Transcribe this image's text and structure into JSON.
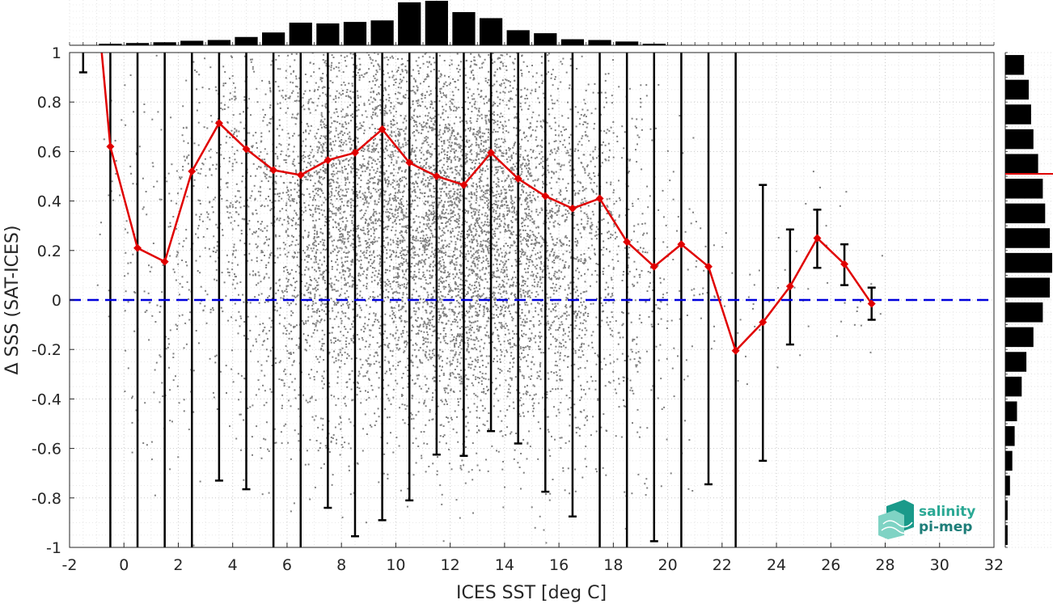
{
  "chart_data": {
    "type": "line",
    "title": "",
    "xlabel": "ICES SST [deg C]",
    "ylabel": "Δ SSS (SAT-ICES)",
    "xlim": [
      -2,
      32
    ],
    "ylim": [
      -1,
      1
    ],
    "xticks": [
      "-2",
      "0",
      "2",
      "4",
      "6",
      "8",
      "10",
      "12",
      "14",
      "16",
      "18",
      "20",
      "22",
      "24",
      "26",
      "28",
      "30",
      "32"
    ],
    "yticks": [
      "-1",
      "-0.8",
      "-0.6",
      "-0.4",
      "-0.2",
      "0",
      "0.2",
      "0.4",
      "0.6",
      "0.8",
      "1"
    ],
    "grid": true,
    "zero_line": {
      "y": 0,
      "color": "#0000dd",
      "style": "dashed"
    },
    "mean_line_color": "#e00000",
    "errorbar_color": "#000000",
    "scatter_color": "#808080",
    "series": [
      {
        "x": [
          -0.5,
          0.5,
          1.5,
          2.5,
          3.5,
          4.5,
          5.5,
          6.5,
          7.5,
          8.5,
          9.5,
          10.5,
          11.5,
          12.5,
          13.5,
          14.5,
          15.5,
          16.5,
          17.5,
          18.5,
          19.5,
          20.5,
          21.5,
          22.5,
          23.5,
          24.5,
          25.5,
          26.5,
          27.5
        ],
        "values": [
          0.62,
          0.21,
          0.155,
          0.52,
          0.715,
          0.61,
          0.525,
          0.505,
          0.565,
          0.595,
          0.69,
          0.555,
          0.5,
          0.465,
          0.595,
          0.49,
          0.42,
          0.37,
          0.41,
          0.235,
          0.135,
          0.225,
          0.135,
          -0.205,
          -0.09,
          0.055,
          0.25,
          0.145,
          -0.015
        ]
      }
    ],
    "error_bars": {
      "x": [
        -1.5,
        -0.5,
        0.5,
        1.5,
        2.5,
        3.5,
        4.5,
        5.5,
        6.5,
        7.5,
        8.5,
        9.5,
        10.5,
        11.5,
        12.5,
        13.5,
        14.5,
        15.5,
        16.5,
        17.5,
        18.5,
        19.5,
        20.5,
        21.5,
        22.5,
        23.5,
        24.5,
        25.5,
        26.5,
        27.5
      ],
      "low": [
        0.92,
        -1.1,
        -1.1,
        -1.1,
        -1.1,
        -0.73,
        -0.765,
        -1.1,
        -1.1,
        -0.84,
        -0.955,
        -0.89,
        -0.81,
        -0.625,
        -0.63,
        -0.53,
        -0.58,
        -0.775,
        -0.875,
        -1.1,
        -1.1,
        -0.975,
        -1.1,
        -0.745,
        -1.1,
        -0.65,
        -0.18,
        0.13,
        0.06,
        -0.08
      ],
      "high": [
        1.1,
        1.1,
        1.1,
        1.1,
        1.1,
        1.1,
        1.1,
        1.1,
        1.1,
        1.1,
        1.1,
        1.1,
        1.1,
        1.1,
        1.1,
        1.1,
        1.1,
        1.1,
        1.1,
        1.1,
        1.1,
        1.1,
        1.1,
        1.1,
        1.0,
        0.465,
        0.285,
        0.365,
        0.225,
        0.05
      ]
    },
    "top_histogram": {
      "x": [
        -1.5,
        -0.5,
        0.5,
        1.5,
        2.5,
        3.5,
        4.5,
        5.5,
        6.5,
        7.5,
        8.5,
        9.5,
        10.5,
        11.5,
        12.5,
        13.5,
        14.5,
        15.5,
        16.5,
        17.5,
        18.5,
        19.5,
        20.5
      ],
      "counts": [
        0.3,
        2,
        3,
        4,
        6,
        7,
        11,
        17,
        30,
        29,
        31,
        33,
        57,
        59,
        44,
        36,
        20,
        16,
        8,
        7,
        5,
        2,
        0.5
      ]
    },
    "right_histogram": {
      "y": [
        0.95,
        0.85,
        0.75,
        0.65,
        0.55,
        0.45,
        0.35,
        0.25,
        0.15,
        0.05,
        -0.05,
        -0.15,
        -0.25,
        -0.35,
        -0.45,
        -0.55,
        -0.65,
        -0.75,
        -0.85,
        -0.95
      ],
      "counts": [
        8,
        10,
        11,
        12,
        14,
        16,
        17,
        19,
        20,
        19,
        16,
        12,
        9,
        7,
        5,
        4,
        3,
        2,
        1,
        1
      ]
    },
    "right_histogram_mean": 0.51,
    "scatter_envelope": {
      "x": [
        -0.5,
        0.5,
        1.5,
        2.5,
        3.5,
        4.5,
        5.5,
        6.5,
        7.5,
        8.5,
        9.5,
        10.5,
        11.5,
        12.5,
        13.5,
        14.5,
        15.5,
        16.5,
        17.5,
        18.5,
        19.5,
        20.5,
        21.5,
        22.5,
        23.5,
        24.5,
        25.5,
        26.5,
        27.5
      ],
      "count": [
        20,
        60,
        80,
        110,
        180,
        220,
        320,
        480,
        650,
        680,
        720,
        760,
        900,
        920,
        820,
        700,
        520,
        420,
        260,
        160,
        90,
        35,
        20,
        10,
        8,
        8,
        8,
        8,
        6
      ]
    }
  },
  "logo": {
    "line1": "salinity",
    "line2": "pi-mep"
  }
}
